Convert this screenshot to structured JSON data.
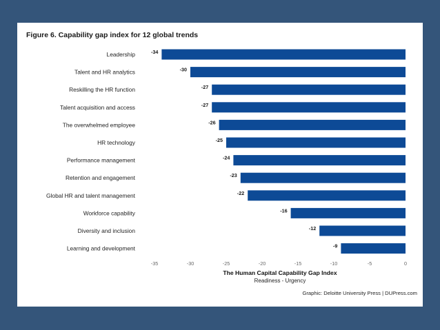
{
  "chart_data": {
    "type": "bar",
    "orientation": "horizontal",
    "title": "Figure 6. Capability gap index for 12 global trends",
    "categories": [
      "Leadership",
      "Talent and HR analytics",
      "Reskilling the HR function",
      "Talent acquisition and access",
      "The overwhelmed employee",
      "HR technology",
      "Performance management",
      "Retention and engagement",
      "Global HR and talent management",
      "Workforce capability",
      "Diversity and inclusion",
      "Learning and development"
    ],
    "values": [
      -34,
      -30,
      -27,
      -27,
      -26,
      -25,
      -24,
      -23,
      -22,
      -16,
      -12,
      -9
    ],
    "value_labels": [
      "-34",
      "-30",
      "-27",
      "-27",
      "-26",
      "-25",
      "-24",
      "-23",
      "-22",
      "-16",
      "-12",
      "-9"
    ],
    "xlim": [
      -35,
      0
    ],
    "xticks": [
      -35,
      -30,
      -25,
      -20,
      -15,
      -10,
      -5,
      0
    ],
    "xtick_labels": [
      "-35",
      "-30",
      "-25",
      "-20",
      "-15",
      "-10",
      "-5",
      "0"
    ],
    "xlabel": "The Human Capital Capability Gap Index",
    "xlabel_sub": "Readiness - Urgency",
    "grid": false,
    "bar_color": "#0d4a96"
  },
  "credit": "Graphic: Deloitte University Press  |  DUPress.com",
  "colors": {
    "background": "#34557a",
    "card": "#ffffff",
    "bar": "#0d4a96"
  }
}
